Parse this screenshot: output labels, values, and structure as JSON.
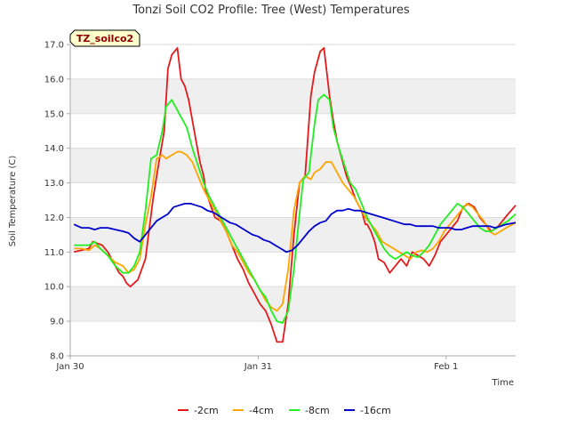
{
  "chart_data": {
    "type": "line",
    "title": "Tonzi Soil CO2 Profile: Tree (West) Temperatures",
    "badge": "TZ_soilco2",
    "xlabel": "Time",
    "ylabel": "Soil Temperature (C)",
    "xlim": [
      0,
      2.37
    ],
    "ylim": [
      8.0,
      17.0
    ],
    "yticks": [
      "8.0",
      "9.0",
      "10.0",
      "11.0",
      "12.0",
      "13.0",
      "14.0",
      "15.0",
      "16.0",
      "17.0"
    ],
    "xticks": [
      {
        "value": 0,
        "label": "Jan 30"
      },
      {
        "value": 1,
        "label": "Jan 31"
      },
      {
        "value": 2,
        "label": "Feb 1"
      }
    ],
    "grid": true,
    "legend_position": "bottom",
    "colors": {
      "-2cm": "#e41a1c",
      "-4cm": "#ffa500",
      "-8cm": "#22ee22",
      "-16cm": "#0000cc"
    },
    "series": [
      {
        "name": "-2cm",
        "color": "#e41a1c",
        "x": [
          0.02,
          0.1,
          0.12,
          0.17,
          0.2,
          0.24,
          0.26,
          0.28,
          0.3,
          0.32,
          0.36,
          0.4,
          0.44,
          0.46,
          0.5,
          0.52,
          0.54,
          0.57,
          0.59,
          0.61,
          0.63,
          0.65,
          0.67,
          0.69,
          0.71,
          0.72,
          0.75,
          0.77,
          0.8,
          0.83,
          0.86,
          0.89,
          0.92,
          0.95,
          0.98,
          1.01,
          1.04,
          1.07,
          1.1,
          1.13,
          1.16,
          1.19,
          1.22,
          1.25,
          1.28,
          1.3,
          1.33,
          1.35,
          1.38,
          1.4,
          1.42,
          1.45,
          1.47,
          1.5,
          1.52,
          1.55,
          1.57,
          1.58,
          1.6,
          1.62,
          1.64,
          1.67,
          1.7,
          1.73,
          1.76,
          1.79,
          1.82,
          1.85,
          1.88,
          1.91,
          1.94,
          1.97,
          2.0,
          2.03,
          2.06,
          2.09,
          2.12,
          2.15,
          2.18,
          2.21,
          2.24,
          2.27,
          2.3,
          2.33,
          2.37
        ],
        "values": [
          11.0,
          11.1,
          11.3,
          11.2,
          11.0,
          10.6,
          10.4,
          10.3,
          10.1,
          10.0,
          10.2,
          10.8,
          12.5,
          13.2,
          14.5,
          16.3,
          16.7,
          16.9,
          16.0,
          15.8,
          15.4,
          14.8,
          14.2,
          13.6,
          13.2,
          12.8,
          12.3,
          12.0,
          11.9,
          11.6,
          11.2,
          10.8,
          10.5,
          10.1,
          9.8,
          9.5,
          9.3,
          8.9,
          8.4,
          8.4,
          9.5,
          11.5,
          13.0,
          13.2,
          15.5,
          16.2,
          16.8,
          16.9,
          15.5,
          14.8,
          14.2,
          13.6,
          13.2,
          12.8,
          12.5,
          12.2,
          11.8,
          11.8,
          11.6,
          11.3,
          10.8,
          10.7,
          10.4,
          10.6,
          10.8,
          10.6,
          11.0,
          10.9,
          10.8,
          10.6,
          10.9,
          11.3,
          11.5,
          11.7,
          11.9,
          12.3,
          12.4,
          12.3,
          12.0,
          11.8,
          11.6,
          11.7,
          11.9,
          12.1,
          12.35
        ]
      },
      {
        "name": "-4cm",
        "color": "#ffa500",
        "x": [
          0.02,
          0.06,
          0.1,
          0.13,
          0.16,
          0.2,
          0.24,
          0.28,
          0.31,
          0.34,
          0.37,
          0.4,
          0.43,
          0.46,
          0.49,
          0.51,
          0.54,
          0.57,
          0.59,
          0.62,
          0.65,
          0.68,
          0.71,
          0.74,
          0.77,
          0.8,
          0.83,
          0.86,
          0.89,
          0.92,
          0.95,
          0.98,
          1.01,
          1.04,
          1.07,
          1.1,
          1.13,
          1.16,
          1.19,
          1.22,
          1.25,
          1.28,
          1.3,
          1.33,
          1.36,
          1.39,
          1.42,
          1.45,
          1.48,
          1.51,
          1.54,
          1.57,
          1.6,
          1.63,
          1.66,
          1.69,
          1.72,
          1.75,
          1.78,
          1.81,
          1.84,
          1.87,
          1.9,
          1.93,
          1.96,
          1.99,
          2.02,
          2.05,
          2.08,
          2.11,
          2.14,
          2.17,
          2.2,
          2.23,
          2.26,
          2.29,
          2.32,
          2.37
        ],
        "values": [
          11.1,
          11.1,
          11.05,
          11.2,
          11.1,
          10.9,
          10.7,
          10.6,
          10.4,
          10.5,
          10.8,
          11.8,
          12.6,
          13.7,
          13.8,
          13.7,
          13.8,
          13.9,
          13.9,
          13.8,
          13.6,
          13.2,
          12.8,
          12.5,
          12.2,
          11.9,
          11.6,
          11.2,
          11.0,
          10.7,
          10.4,
          10.2,
          9.9,
          9.6,
          9.4,
          9.3,
          9.5,
          10.5,
          12.2,
          13.0,
          13.2,
          13.1,
          13.3,
          13.4,
          13.6,
          13.6,
          13.3,
          13.0,
          12.8,
          12.6,
          12.3,
          12.0,
          11.8,
          11.6,
          11.3,
          11.2,
          11.1,
          11.0,
          10.9,
          10.8,
          11.0,
          11.05,
          11.0,
          11.1,
          11.3,
          11.6,
          11.8,
          12.0,
          12.2,
          12.4,
          12.3,
          12.1,
          11.9,
          11.6,
          11.5,
          11.6,
          11.7,
          11.85
        ]
      },
      {
        "name": "-8cm",
        "color": "#22ee22",
        "x": [
          0.02,
          0.06,
          0.1,
          0.13,
          0.16,
          0.2,
          0.24,
          0.28,
          0.31,
          0.34,
          0.37,
          0.4,
          0.43,
          0.46,
          0.49,
          0.51,
          0.54,
          0.56,
          0.59,
          0.62,
          0.65,
          0.68,
          0.71,
          0.74,
          0.77,
          0.8,
          0.83,
          0.86,
          0.89,
          0.92,
          0.95,
          0.98,
          1.01,
          1.04,
          1.07,
          1.1,
          1.13,
          1.16,
          1.19,
          1.22,
          1.24,
          1.27,
          1.3,
          1.32,
          1.35,
          1.38,
          1.4,
          1.43,
          1.46,
          1.49,
          1.52,
          1.55,
          1.58,
          1.61,
          1.64,
          1.67,
          1.7,
          1.73,
          1.76,
          1.79,
          1.82,
          1.85,
          1.88,
          1.91,
          1.94,
          1.97,
          2.0,
          2.03,
          2.06,
          2.09,
          2.12,
          2.15,
          2.18,
          2.21,
          2.24,
          2.27,
          2.3,
          2.33,
          2.37
        ],
        "values": [
          11.2,
          11.2,
          11.2,
          11.3,
          11.1,
          10.9,
          10.6,
          10.4,
          10.4,
          10.6,
          11.0,
          12.2,
          13.7,
          13.8,
          14.5,
          15.2,
          15.4,
          15.2,
          14.9,
          14.6,
          14.0,
          13.5,
          13.0,
          12.6,
          12.3,
          12.0,
          11.7,
          11.4,
          11.1,
          10.8,
          10.5,
          10.2,
          9.9,
          9.7,
          9.3,
          9.0,
          8.95,
          9.3,
          10.5,
          12.1,
          13.1,
          13.3,
          14.7,
          15.4,
          15.55,
          15.4,
          14.6,
          14.0,
          13.5,
          13.0,
          12.8,
          12.4,
          12.0,
          11.7,
          11.4,
          11.1,
          10.9,
          10.8,
          10.9,
          11.0,
          10.9,
          10.85,
          11.0,
          11.2,
          11.5,
          11.8,
          12.0,
          12.2,
          12.4,
          12.3,
          12.1,
          11.9,
          11.7,
          11.6,
          11.6,
          11.7,
          11.8,
          11.9,
          12.1
        ]
      },
      {
        "name": "-16cm",
        "color": "#0000cc",
        "x": [
          0.02,
          0.06,
          0.1,
          0.13,
          0.16,
          0.2,
          0.24,
          0.28,
          0.31,
          0.34,
          0.37,
          0.4,
          0.43,
          0.46,
          0.49,
          0.52,
          0.55,
          0.58,
          0.61,
          0.64,
          0.67,
          0.7,
          0.73,
          0.76,
          0.79,
          0.82,
          0.85,
          0.88,
          0.91,
          0.94,
          0.97,
          1.0,
          1.03,
          1.06,
          1.09,
          1.12,
          1.15,
          1.18,
          1.21,
          1.24,
          1.27,
          1.3,
          1.33,
          1.36,
          1.39,
          1.42,
          1.45,
          1.48,
          1.51,
          1.54,
          1.57,
          1.6,
          1.63,
          1.66,
          1.69,
          1.72,
          1.75,
          1.78,
          1.81,
          1.84,
          1.87,
          1.9,
          1.93,
          1.96,
          1.99,
          2.02,
          2.05,
          2.08,
          2.11,
          2.14,
          2.17,
          2.2,
          2.23,
          2.26,
          2.29,
          2.32,
          2.37
        ],
        "values": [
          11.8,
          11.7,
          11.7,
          11.65,
          11.7,
          11.7,
          11.65,
          11.6,
          11.55,
          11.4,
          11.3,
          11.5,
          11.7,
          11.9,
          12.0,
          12.1,
          12.3,
          12.35,
          12.4,
          12.4,
          12.35,
          12.3,
          12.2,
          12.15,
          12.05,
          11.95,
          11.85,
          11.8,
          11.7,
          11.6,
          11.5,
          11.45,
          11.35,
          11.3,
          11.2,
          11.1,
          11.0,
          11.05,
          11.2,
          11.4,
          11.6,
          11.75,
          11.85,
          11.9,
          12.1,
          12.2,
          12.2,
          12.25,
          12.2,
          12.2,
          12.15,
          12.1,
          12.05,
          12.0,
          11.95,
          11.9,
          11.85,
          11.8,
          11.8,
          11.75,
          11.75,
          11.75,
          11.75,
          11.7,
          11.7,
          11.7,
          11.65,
          11.65,
          11.7,
          11.75,
          11.75,
          11.75,
          11.75,
          11.7,
          11.75,
          11.8,
          11.85
        ]
      }
    ]
  }
}
